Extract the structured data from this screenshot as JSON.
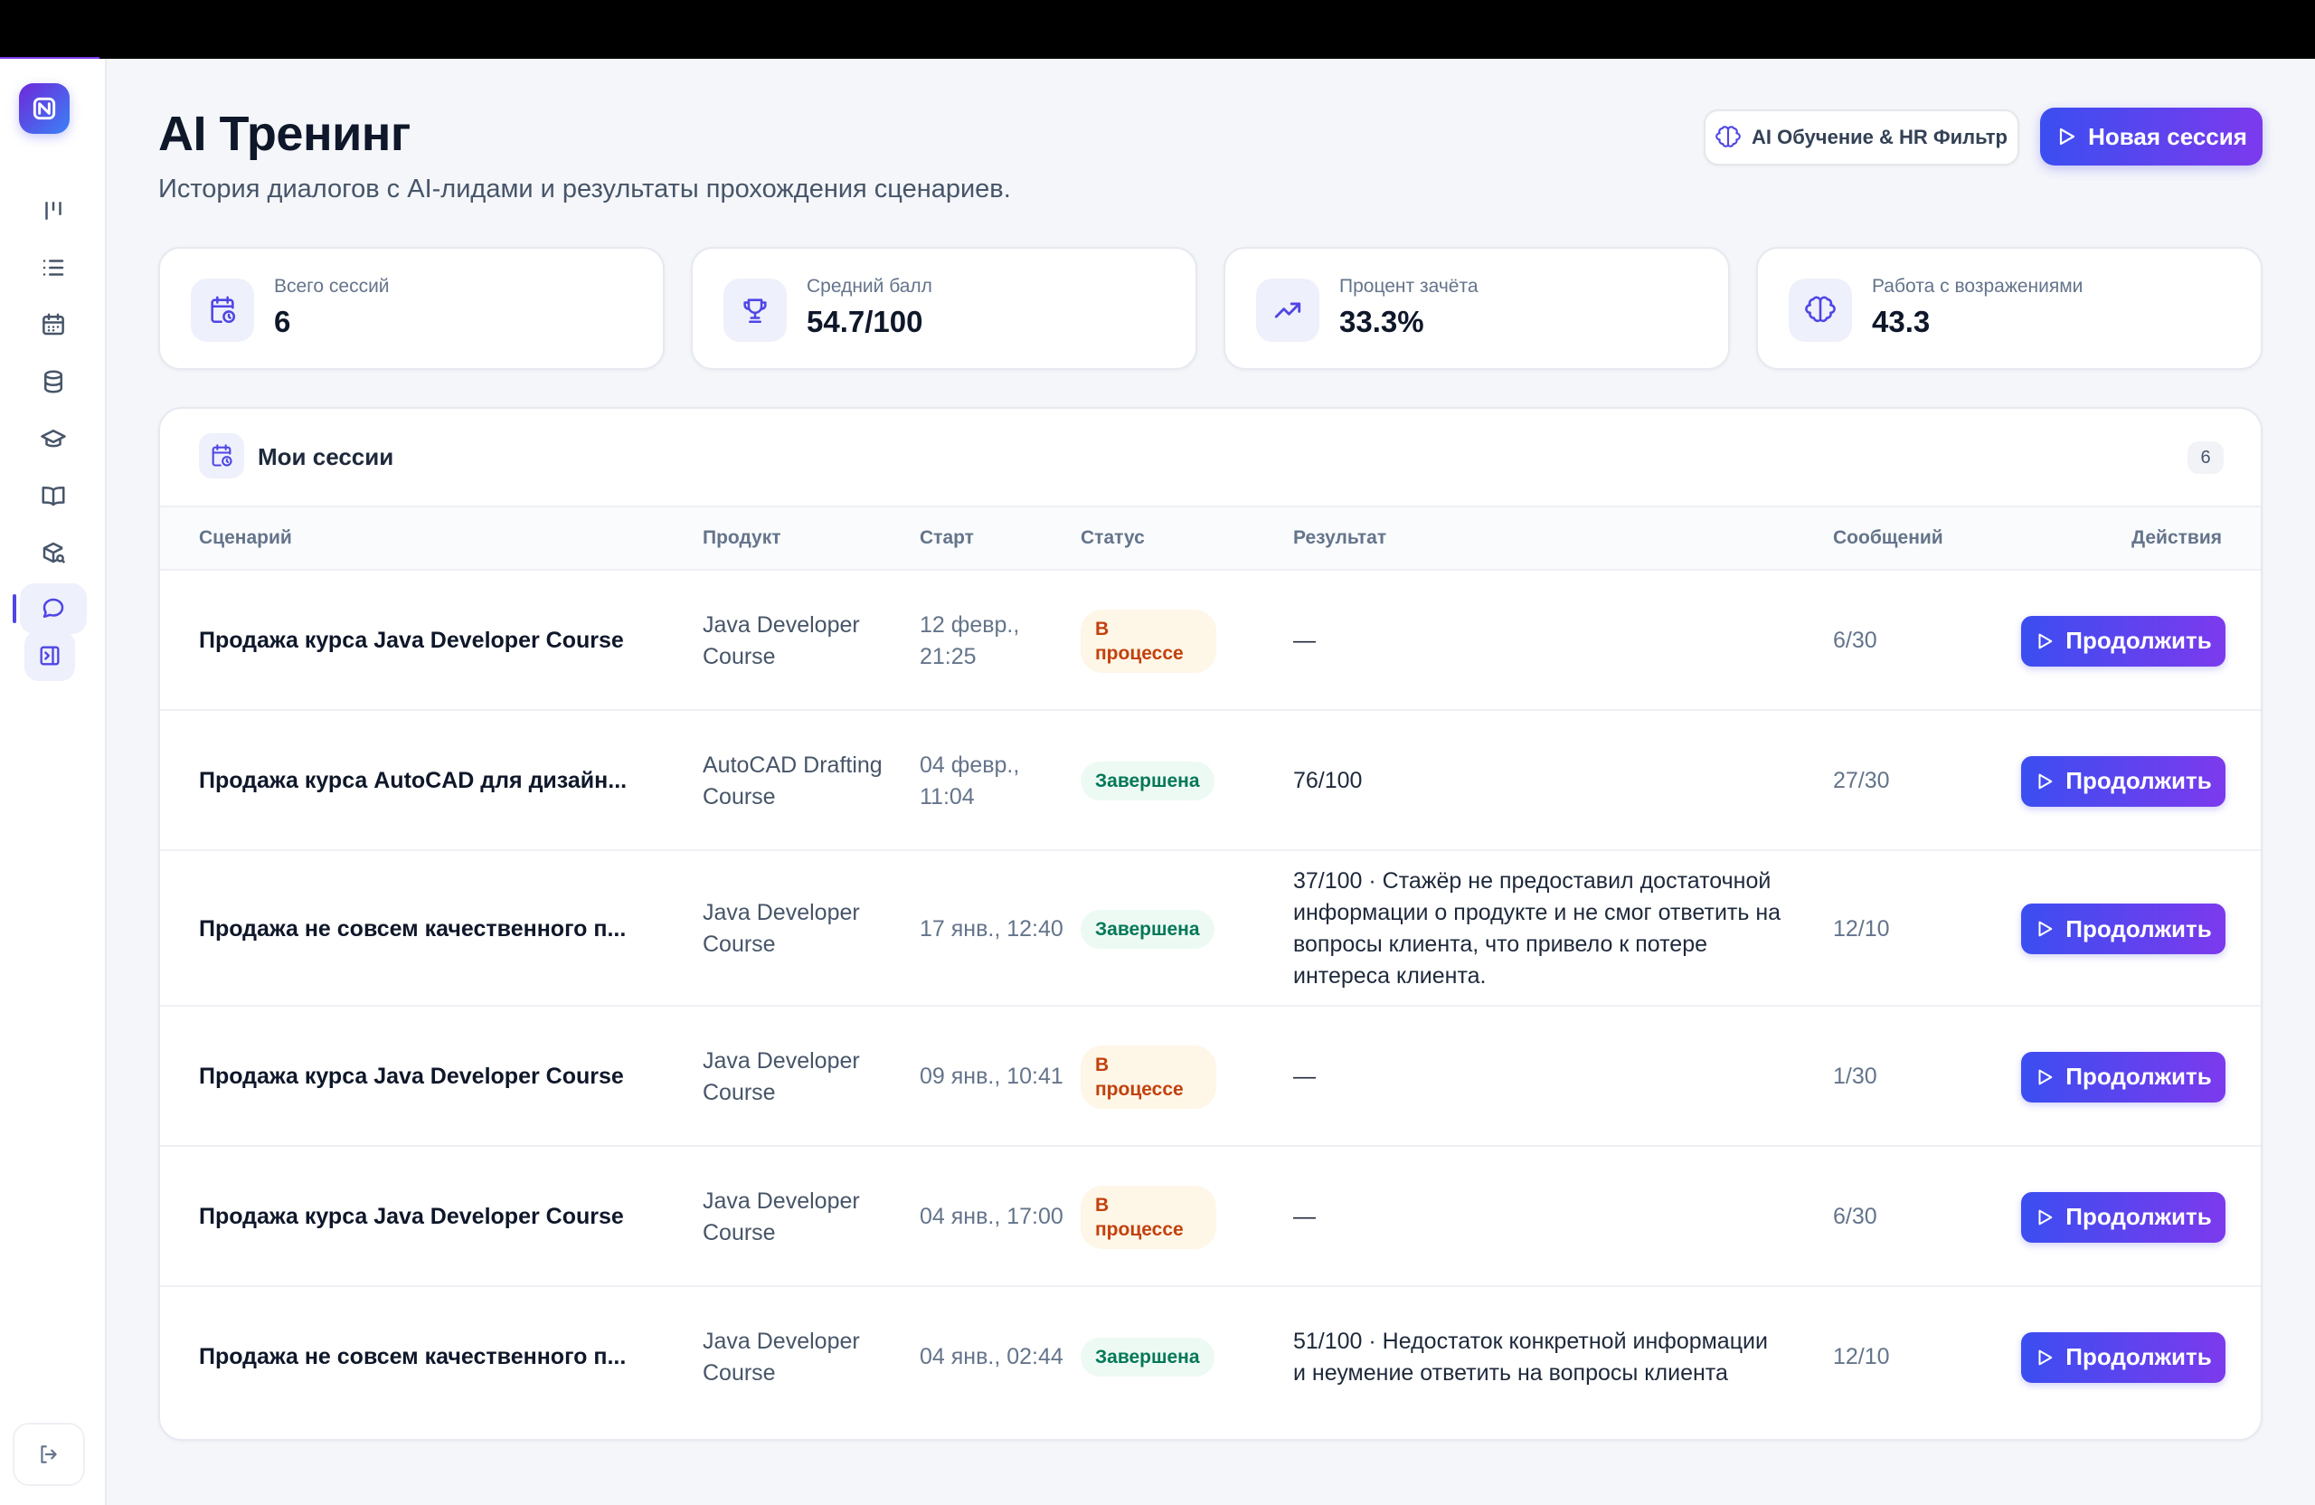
{
  "header": {
    "title": "AI Тренинг",
    "subtitle": "История диалогов с AI-лидами и результаты прохождения сценариев.",
    "secondary_button": "AI Обучение & HR Фильтр",
    "primary_button": "Новая сессия"
  },
  "sidebar": {
    "items": [
      {
        "icon": "kanban-icon"
      },
      {
        "icon": "list-icon"
      },
      {
        "icon": "calendar-icon"
      },
      {
        "icon": "database-icon"
      },
      {
        "icon": "graduation-cap-icon"
      },
      {
        "icon": "book-icon"
      },
      {
        "icon": "package-search-icon"
      },
      {
        "icon": "chat-icon",
        "active": true
      }
    ],
    "collapse_icon": "panel-toggle-icon",
    "logout_icon": "logout-icon"
  },
  "stats": [
    {
      "label": "Всего сессий",
      "value": "6",
      "icon": "calendar-clock-icon"
    },
    {
      "label": "Средний балл",
      "value": "54.7/100",
      "icon": "trophy-icon"
    },
    {
      "label": "Процент зачёта",
      "value": "33.3%",
      "icon": "trending-up-icon"
    },
    {
      "label": "Работа с возражениями",
      "value": "43.3",
      "icon": "brain-icon"
    }
  ],
  "sessions": {
    "title": "Мои сессии",
    "count": "6",
    "columns": {
      "scenario": "Сценарий",
      "product": "Продукт",
      "start": "Старт",
      "status": "Статус",
      "result": "Результат",
      "messages": "Сообщений",
      "actions": "Действия"
    },
    "action_label": "Продолжить",
    "rows": [
      {
        "scenario": "Продажа курса Java Developer Course",
        "product": "Java Developer Course",
        "start": "12 февр., 21:25",
        "status": "В процессе",
        "status_type": "progress",
        "result": "—",
        "messages": "6/30"
      },
      {
        "scenario": "Продажа курса AutoCAD для дизайн...",
        "product": "AutoCAD Drafting Course",
        "start": "04 февр., 11:04",
        "status": "Завершена",
        "status_type": "done",
        "result": "76/100",
        "messages": "27/30"
      },
      {
        "scenario": "Продажа не совсем качественного п...",
        "product": "Java Developer Course",
        "start": "17 янв., 12:40",
        "status": "Завершена",
        "status_type": "done",
        "result": "37/100 · Стажёр не предоставил достаточной информации о продукте и не смог ответить на вопросы клиента, что привело к потере интереса клиента.",
        "messages": "12/10"
      },
      {
        "scenario": "Продажа курса Java Developer Course",
        "product": "Java Developer Course",
        "start": "09 янв., 10:41",
        "status": "В процессе",
        "status_type": "progress",
        "result": "—",
        "messages": "1/30"
      },
      {
        "scenario": "Продажа курса Java Developer Course",
        "product": "Java Developer Course",
        "start": "04 янв., 17:00",
        "status": "В процессе",
        "status_type": "progress",
        "result": "—",
        "messages": "6/30"
      },
      {
        "scenario": "Продажа не совсем качественного п...",
        "product": "Java Developer Course",
        "start": "04 янв., 02:44",
        "status": "Завершена",
        "status_type": "done",
        "result": "51/100 · Недостаток конкретной информации и неумение ответить на вопросы клиента",
        "messages": "12/10"
      }
    ]
  }
}
